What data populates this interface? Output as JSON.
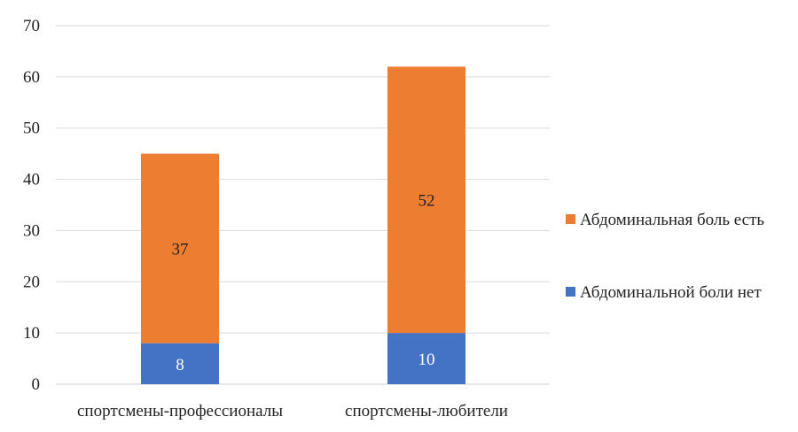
{
  "chart_data": {
    "type": "bar",
    "stacked": true,
    "categories": [
      "спортсмены-профессионалы",
      "спортсмены-любители"
    ],
    "series": [
      {
        "name": "Абдоминальной боли нет",
        "values": [
          8,
          10
        ],
        "color": "#4472C4",
        "label_color": "#ffffff"
      },
      {
        "name": "Абдоминальная боль есть",
        "values": [
          37,
          52
        ],
        "color": "#ED7D31",
        "label_color": "#222222"
      }
    ],
    "legend_order": [
      1,
      0
    ],
    "legend_position": "right",
    "ylim": [
      0,
      70
    ],
    "yticks": [
      0,
      10,
      20,
      30,
      40,
      50,
      60,
      70
    ],
    "grid": true,
    "title": "",
    "xlabel": "",
    "ylabel": ""
  }
}
